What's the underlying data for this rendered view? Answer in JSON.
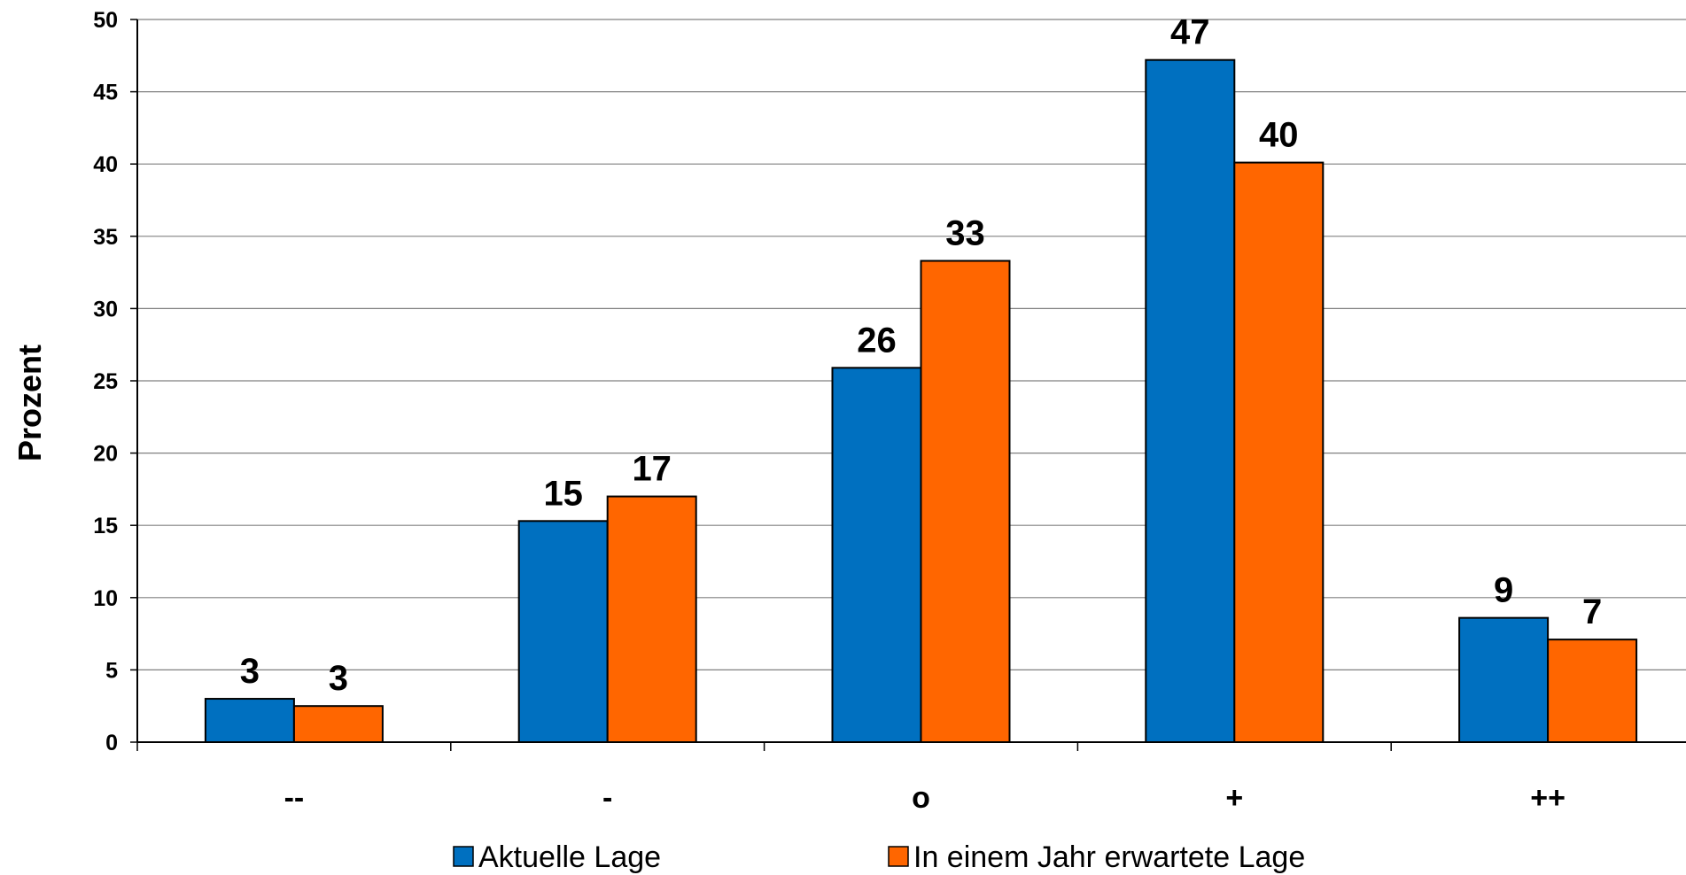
{
  "chart_data": {
    "type": "bar",
    "ylabel": "Prozent",
    "xlabel": "",
    "ylim": [
      0,
      50
    ],
    "yticks": [
      0,
      5,
      10,
      15,
      20,
      25,
      30,
      35,
      40,
      45,
      50
    ],
    "grid": true,
    "legend_position": "bottom",
    "categories": [
      "--",
      "-",
      "o",
      "+",
      "++"
    ],
    "series": [
      {
        "name": "Aktuelle Lage",
        "color": "#0070C0",
        "values": [
          3,
          15.3,
          25.9,
          47.2,
          8.6
        ],
        "labels": [
          "3",
          "15",
          "26",
          "47",
          "9"
        ]
      },
      {
        "name": "In einem Jahr erwartete Lage",
        "color": "#FF6600",
        "values": [
          2.5,
          17,
          33.3,
          40.1,
          7.1
        ],
        "labels": [
          "3",
          "17",
          "33",
          "40",
          "7"
        ]
      }
    ]
  }
}
